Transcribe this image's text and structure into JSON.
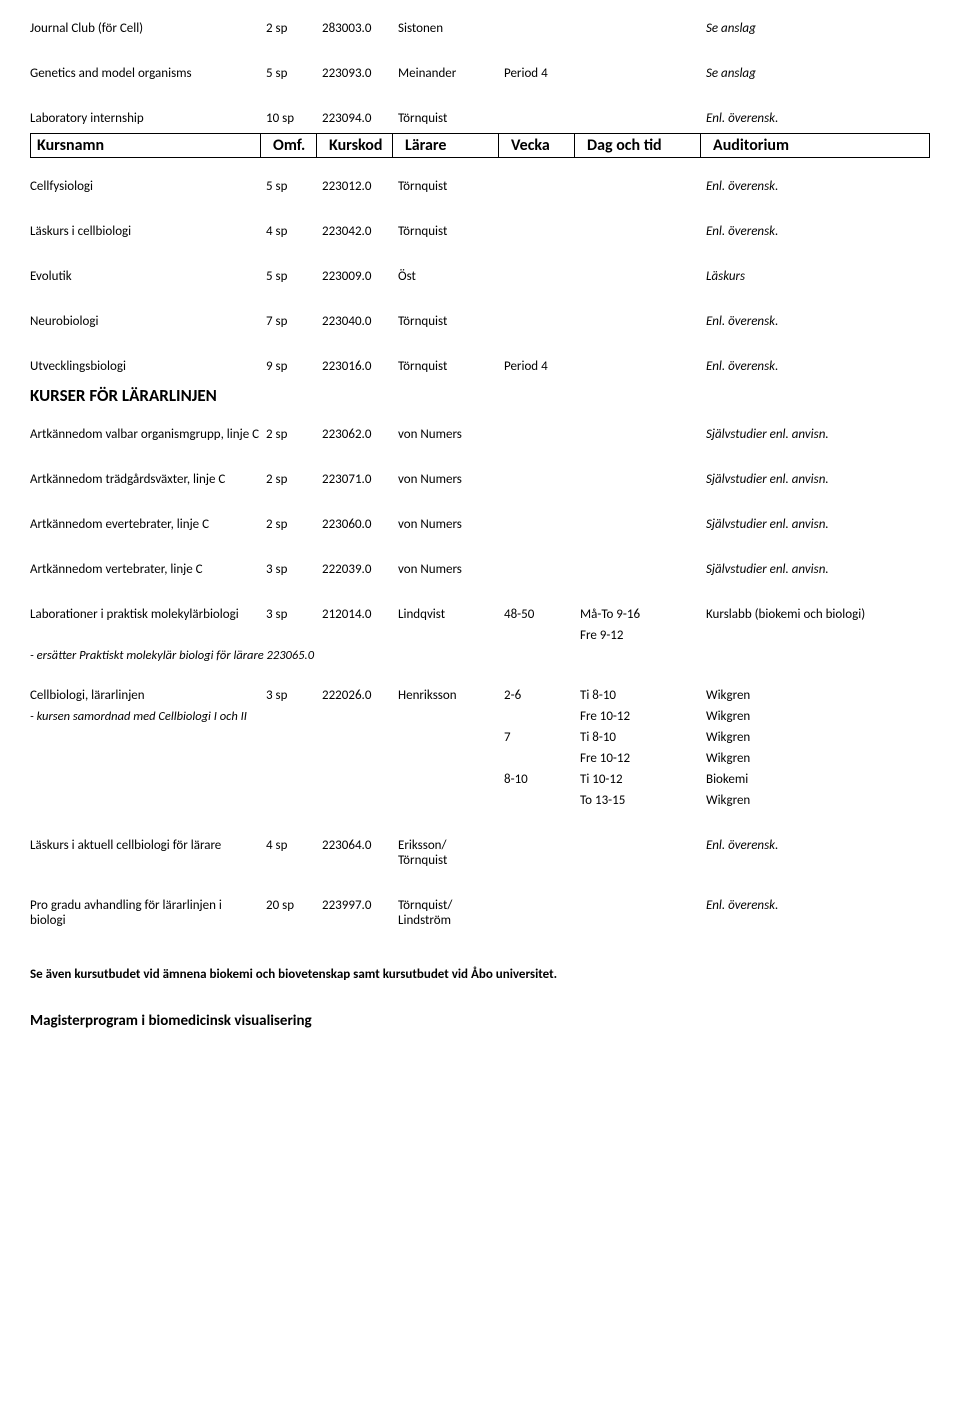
{
  "rows_top": [
    {
      "name": "Journal Club (för Cell)",
      "omf": "2 sp",
      "kod": "283003.0",
      "larare": "Sistonen",
      "vecka": "",
      "tid": "",
      "aud": "Se anslag",
      "aud_italic": true
    },
    {
      "name": "Genetics and model organisms",
      "omf": "5 sp",
      "kod": "223093.0",
      "larare": "Meinander",
      "vecka": "Period 4",
      "tid": "",
      "aud": "Se anslag",
      "aud_italic": true
    },
    {
      "name": "Laboratory internship",
      "omf": "10 sp",
      "kod": "223094.0",
      "larare": "Törnquist",
      "vecka": "",
      "tid": "",
      "aud": "Enl. överensk.",
      "aud_italic": true
    }
  ],
  "header": {
    "c1": "Kursnamn",
    "c2": "Omf.",
    "c3": "Kurskod",
    "c4": "Lärare",
    "c5": "Vecka",
    "c6": "Dag och tid",
    "c7": "Auditorium"
  },
  "rows_mid": [
    {
      "name": "Cellfysiologi",
      "omf": "5 sp",
      "kod": "223012.0",
      "larare": "Törnquist",
      "vecka": "",
      "tid": "",
      "aud": "Enl. överensk.",
      "aud_italic": true
    },
    {
      "name": "Läskurs i cellbiologi",
      "omf": "4 sp",
      "kod": "223042.0",
      "larare": "Törnquist",
      "vecka": "",
      "tid": "",
      "aud": "Enl. överensk.",
      "aud_italic": true
    },
    {
      "name": "Evolutik",
      "omf": "5 sp",
      "kod": "223009.0",
      "larare": "Öst",
      "vecka": "",
      "tid": "",
      "aud": "Läskurs",
      "aud_italic": true
    },
    {
      "name": "Neurobiologi",
      "omf": "7 sp",
      "kod": "223040.0",
      "larare": "Törnquist",
      "vecka": "",
      "tid": "",
      "aud": "Enl. överensk.",
      "aud_italic": true
    },
    {
      "name": "Utvecklingsbiologi",
      "omf": "9 sp",
      "kod": "223016.0",
      "larare": "Törnquist",
      "vecka": "Period 4",
      "tid": "",
      "aud": "Enl. överensk.",
      "aud_italic": true
    }
  ],
  "section_title": "KURSER FÖR LÄRARLINJEN",
  "rows_lar": [
    {
      "name": "Artkännedom valbar organismgrupp, linje C",
      "omf": "2 sp",
      "kod": "223062.0",
      "larare": "von Numers",
      "vecka": "",
      "tid": "",
      "aud": "Självstudier enl. anvisn.",
      "aud_italic": true
    },
    {
      "name": "Artkännedom trädgårdsväxter, linje C",
      "omf": "2 sp",
      "kod": "223071.0",
      "larare": "von Numers",
      "vecka": "",
      "tid": "",
      "aud": "Självstudier enl. anvisn.",
      "aud_italic": true
    },
    {
      "name": "Artkännedom evertebrater, linje C",
      "omf": "2 sp",
      "kod": "223060.0",
      "larare": "von Numers",
      "vecka": "",
      "tid": "",
      "aud": "Självstudier enl. anvisn.",
      "aud_italic": true
    },
    {
      "name": "Artkännedom vertebrater, linje C",
      "omf": "3 sp",
      "kod": "222039.0",
      "larare": "von Numers",
      "vecka": "",
      "tid": "",
      "aud": "Självstudier enl. anvisn.",
      "aud_italic": true
    }
  ],
  "lab_row": {
    "name": "Laborationer i praktisk molekylärbiologi",
    "omf": "3 sp",
    "kod": "212014.0",
    "larare": "Lindqvist",
    "vecka": "48-50",
    "tid1": "Må-To 9-16",
    "tid2": "Fre 9-12",
    "aud": "Kurslabb (biokemi och biologi)",
    "note": " - ersätter Praktiskt molekylär biologi för lärare 223065.0"
  },
  "cell_row": {
    "name": "Cellbiologi, lärarlinjen",
    "omf": "3 sp",
    "kod": "222026.0",
    "larare": "Henriksson",
    "note": " - kursen samordnad med Cellbiologi I och II",
    "lines": [
      {
        "vecka": "2-6",
        "tid": "Ti 8-10",
        "aud": "Wikgren"
      },
      {
        "vecka": "",
        "tid": "Fre 10-12",
        "aud": "Wikgren"
      },
      {
        "vecka": "7",
        "tid": "Ti 8-10",
        "aud": "Wikgren"
      },
      {
        "vecka": "",
        "tid": "Fre 10-12",
        "aud": "Wikgren"
      },
      {
        "vecka": "8-10",
        "tid": "Ti 10-12",
        "aud": "Biokemi"
      },
      {
        "vecka": "",
        "tid": "To 13-15",
        "aud": "Wikgren"
      }
    ]
  },
  "rows_bottom": [
    {
      "name": "Läskurs i aktuell cellbiologi för lärare",
      "omf": "4 sp",
      "kod": "223064.0",
      "larare": "Eriksson/ Törnquist",
      "vecka": "",
      "tid": "",
      "aud": "Enl. överensk.",
      "aud_italic": true
    },
    {
      "name": "Pro gradu avhandling för lärarlinjen i biologi",
      "omf": "20 sp",
      "kod": "223997.0",
      "larare": "Törnquist/ Lindström",
      "vecka": "",
      "tid": "",
      "aud": "Enl. överensk.",
      "aud_italic": true
    }
  ],
  "footer_bold": "Se även kursutbudet vid ämnena biokemi och biovetenskap samt kursutbudet vid Åbo universitet.",
  "footer_h": "Magisterprogram i biomedicinsk visualisering"
}
